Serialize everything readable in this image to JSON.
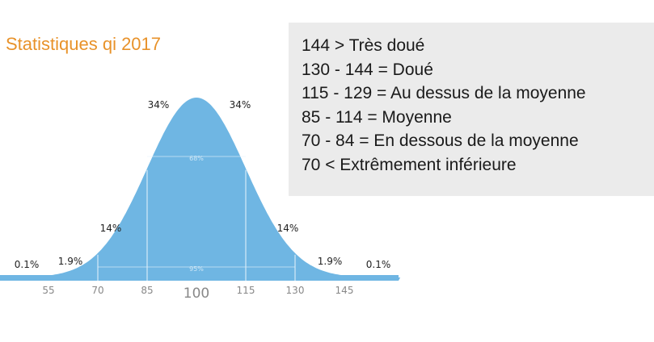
{
  "title": "Statistiques qi 2017",
  "legend": [
    "144 > Très doué",
    "130 - 144 = Doué",
    "115 - 129 = Au dessus de la moyenne",
    "85 - 114 = Moyenne",
    "70 - 84 = En dessous de la moyenne",
    "70 < Extrêmement inférieure"
  ],
  "colors": {
    "title": "#e8922a",
    "curve": "#6fb6e3",
    "band": "#e7f3fb"
  },
  "chart_data": {
    "type": "area",
    "description_free": true,
    "mean": 100,
    "sd": 15,
    "x_ticks": [
      55,
      70,
      85,
      100,
      115,
      130,
      145
    ],
    "segments": [
      {
        "from": 40,
        "to": 55,
        "label": "0.1%"
      },
      {
        "from": 55,
        "to": 70,
        "label": "1.9%"
      },
      {
        "from": 70,
        "to": 85,
        "label": "14%"
      },
      {
        "from": 85,
        "to": 100,
        "label": "34%"
      },
      {
        "from": 100,
        "to": 115,
        "label": "34%"
      },
      {
        "from": 115,
        "to": 130,
        "label": "14%"
      },
      {
        "from": 130,
        "to": 145,
        "label": "1.9%"
      },
      {
        "from": 145,
        "to": 160,
        "label": "0.1%"
      }
    ],
    "inner_band_labels": [
      "68%",
      "95%"
    ]
  }
}
